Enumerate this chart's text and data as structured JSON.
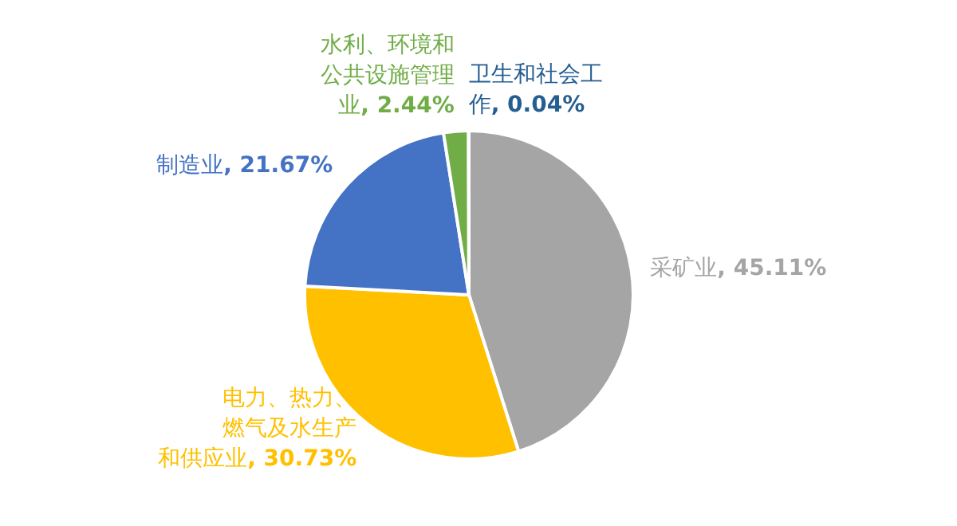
{
  "chart_data": {
    "type": "pie",
    "categories": [
      "采矿业",
      "电力、热力、燃气及水生产和供应业",
      "制造业",
      "水利、环境和公共设施管理业",
      "卫生和社会工作"
    ],
    "values": [
      45.11,
      30.73,
      21.67,
      2.44,
      0.04
    ],
    "value_labels": [
      ", 45.11%",
      ", 30.73%",
      ", 21.67%",
      ", 2.44%",
      ", 0.04%"
    ],
    "colors": [
      "#a5a5a5",
      "#ffc000",
      "#4472c4",
      "#70ad47",
      "#255e91"
    ],
    "data_labels": true
  }
}
